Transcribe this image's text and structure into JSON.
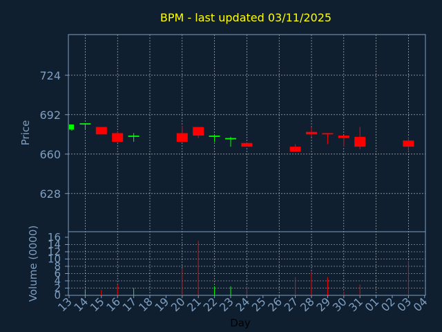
{
  "chart_data": {
    "type": "candlestick",
    "title": "BPM - last updated 03/11/2025",
    "colors": {
      "background": "#0f1f30",
      "axis": "#7f9fc0",
      "grid": "#ffffff",
      "title": "#ffff00",
      "up": "#00ff00",
      "down": "#ff0000"
    },
    "price_panel": {
      "ylabel": "Price",
      "yticks": [
        628,
        660,
        692,
        724
      ],
      "ylim": [
        597,
        757
      ],
      "grid": true
    },
    "volume_panel": {
      "ylabel": "Volume (0000)",
      "yticks": [
        0,
        2,
        4,
        6,
        8,
        10,
        12,
        14,
        16
      ],
      "ylim": [
        0,
        16
      ],
      "grid": true
    },
    "x_axis": {
      "xlabel": "Day",
      "tick_labels": [
        "13",
        "14",
        "15",
        "16",
        "17",
        "18",
        "19",
        "20",
        "21",
        "22",
        "23",
        "24",
        "25",
        "26",
        "27",
        "28",
        "29",
        "30",
        "31",
        "01",
        "02",
        "03",
        "04"
      ]
    },
    "candles": [
      {
        "day": "13",
        "open": 680,
        "high": 684,
        "low": 679,
        "close": 684,
        "volume": 0
      },
      {
        "day": "14",
        "open": 684,
        "high": 685,
        "low": 680,
        "close": 685,
        "volume": 1.5
      },
      {
        "day": "15",
        "open": 682,
        "high": 682,
        "low": 676,
        "close": 676,
        "volume": 1.5
      },
      {
        "day": "16",
        "open": 677,
        "high": 678,
        "low": 670,
        "close": 670,
        "volume": 3
      },
      {
        "day": "17",
        "open": 674,
        "high": 677,
        "low": 670,
        "close": 675,
        "volume": 2
      },
      {
        "day": "20",
        "open": 677,
        "high": 683,
        "low": 670,
        "close": 670,
        "volume": 7.5
      },
      {
        "day": "21",
        "open": 682,
        "high": 682,
        "low": 673,
        "close": 675,
        "volume": 15
      },
      {
        "day": "22",
        "open": 674,
        "high": 675,
        "low": 670,
        "close": 675,
        "volume": 2.5
      },
      {
        "day": "23",
        "open": 672,
        "high": 674,
        "low": 666,
        "close": 673,
        "volume": 2.5
      },
      {
        "day": "24",
        "open": 669,
        "high": 669,
        "low": 666,
        "close": 666,
        "volume": 2.5
      },
      {
        "day": "27",
        "open": 666,
        "high": 668,
        "low": 662,
        "close": 662,
        "volume": 5
      },
      {
        "day": "28",
        "open": 678,
        "high": 682,
        "low": 674,
        "close": 676,
        "volume": 6.5
      },
      {
        "day": "29",
        "open": 677,
        "high": 677,
        "low": 668,
        "close": 676,
        "volume": 5
      },
      {
        "day": "30",
        "open": 675,
        "high": 675,
        "low": 666,
        "close": 673,
        "volume": 1
      },
      {
        "day": "31",
        "open": 674,
        "high": 682,
        "low": 664,
        "close": 666,
        "volume": 3
      },
      {
        "day": "03",
        "open": 671,
        "high": 674,
        "low": 662,
        "close": 666,
        "volume": 9.5
      }
    ]
  }
}
